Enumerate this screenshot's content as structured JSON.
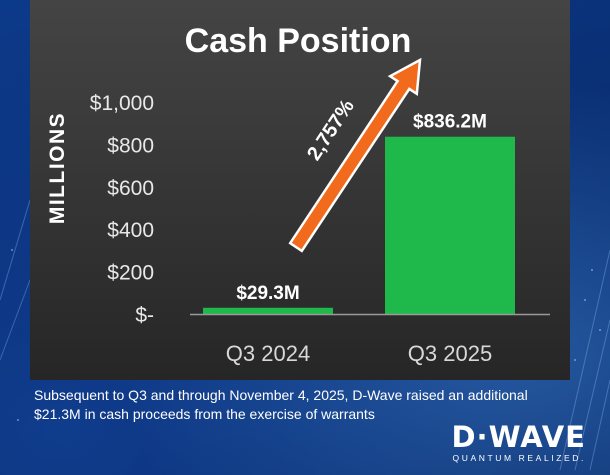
{
  "chart_data": {
    "type": "bar",
    "title": "Cash Position",
    "ylabel": "MILLIONS",
    "xlabel": "",
    "categories": [
      "Q3 2024",
      "Q3 2025"
    ],
    "values": [
      29.3,
      836.2
    ],
    "value_labels": [
      "$29.3M",
      "$836.2M"
    ],
    "ylim": [
      0,
      1000
    ],
    "yticks": [
      0,
      200,
      400,
      600,
      800,
      1000
    ],
    "ytick_labels": [
      "$-",
      "$200",
      "$400",
      "$600",
      "$800",
      "$1,000"
    ],
    "annotation": {
      "text": "2,757%",
      "type": "growth-arrow"
    },
    "grid": false,
    "legend": "none",
    "bar_color": "#1fb84a",
    "arrow_color": "#f26a1b",
    "background_color": "#3a3a3a"
  },
  "footnote": "Subsequent to Q3 and through November 4, 2025, D-Wave raised an additional $21.3M in cash proceeds from the exercise of warrants",
  "logo": {
    "wordmark": "D·WAVE",
    "tagline": "QUANTUM REALIZED."
  }
}
